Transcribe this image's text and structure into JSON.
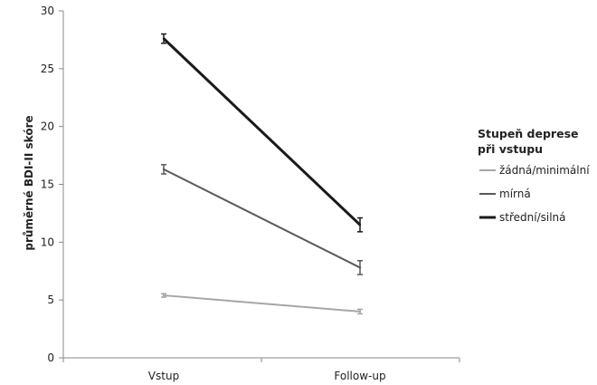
{
  "chart_data": {
    "type": "line",
    "categories": [
      "Vstup",
      "Follow-up"
    ],
    "ylabel": "průměrné BDI-II skóre",
    "ylim": [
      0,
      30
    ],
    "yticks": [
      0,
      5,
      10,
      15,
      20,
      25,
      30
    ],
    "grid": false,
    "legend": {
      "title_line1": "Stupeň deprese",
      "title_line2": "při vstupu",
      "position": "right"
    },
    "series": [
      {
        "name": "žádná/minimální",
        "values": [
          5.4,
          4.0
        ],
        "err": [
          0.15,
          0.2
        ],
        "color": "#a6a6a6",
        "width": 2
      },
      {
        "name": "mírná",
        "values": [
          16.3,
          7.8
        ],
        "err": [
          0.4,
          0.6
        ],
        "color": "#595959",
        "width": 2
      },
      {
        "name": "střední/silná",
        "values": [
          27.6,
          11.5
        ],
        "err": [
          0.4,
          0.6
        ],
        "color": "#1a1a1a",
        "width": 3
      }
    ]
  }
}
